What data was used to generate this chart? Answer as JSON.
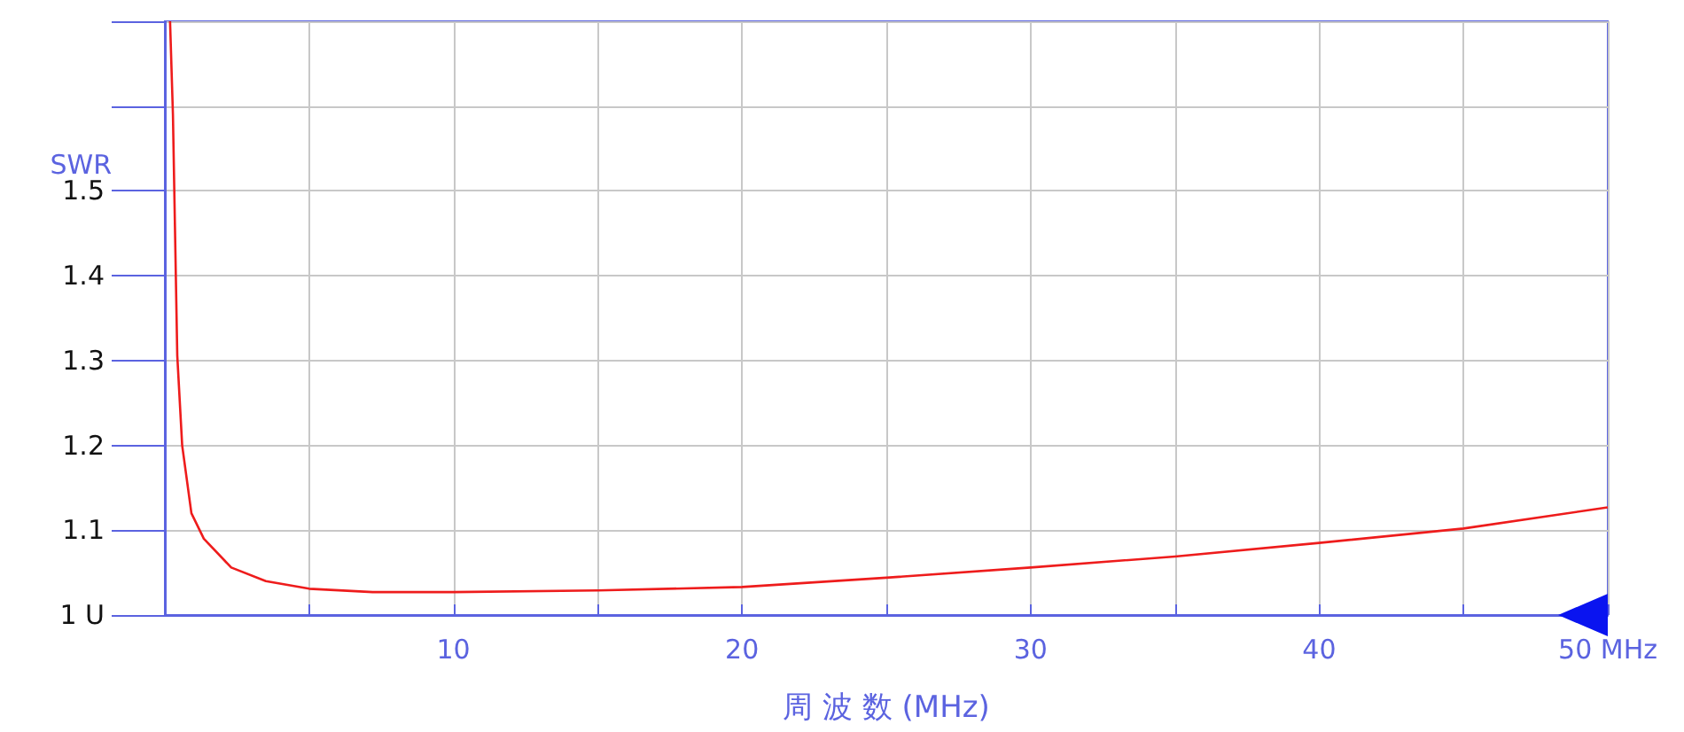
{
  "chart_data": {
    "type": "line",
    "xlabel": "周 波 数 (MHz)",
    "ylabel": "SWR",
    "x": [
      0.18,
      0.28,
      0.43,
      0.6,
      0.92,
      1.35,
      2.3,
      3.5,
      5,
      7.2,
      10,
      15,
      20,
      25,
      30,
      35,
      40,
      45,
      50
    ],
    "series": [
      {
        "color": "#ee1c1c",
        "values": [
          1.7,
          1.59,
          1.306,
          1.2,
          1.12,
          1.09,
          1.056,
          1.04,
          1.031,
          1.027,
          1.027,
          1.029,
          1.033,
          1.044,
          1.056,
          1.069,
          1.085,
          1.102,
          1.127
        ]
      }
    ],
    "xlim": [
      0,
      50
    ],
    "xticks": [
      {
        "value": 0,
        "label": null
      },
      {
        "value": 5,
        "label": null
      },
      10,
      {
        "value": 15,
        "label": null
      },
      20,
      {
        "value": 25,
        "label": null
      },
      30,
      {
        "value": 35,
        "label": null
      },
      40,
      {
        "value": 45,
        "label": null
      },
      {
        "value": 50,
        "label": "50 MHz"
      }
    ],
    "ylim": [
      1,
      1.7
    ],
    "yticks": [
      {
        "value": 1,
        "label": "1 U"
      },
      1.1,
      1.2,
      1.3,
      1.4,
      1.5,
      {
        "value": 1.6,
        "label": null
      },
      {
        "value": 1.7,
        "label": null
      }
    ],
    "grid": true,
    "marker": "none",
    "line_style": "solid"
  }
}
